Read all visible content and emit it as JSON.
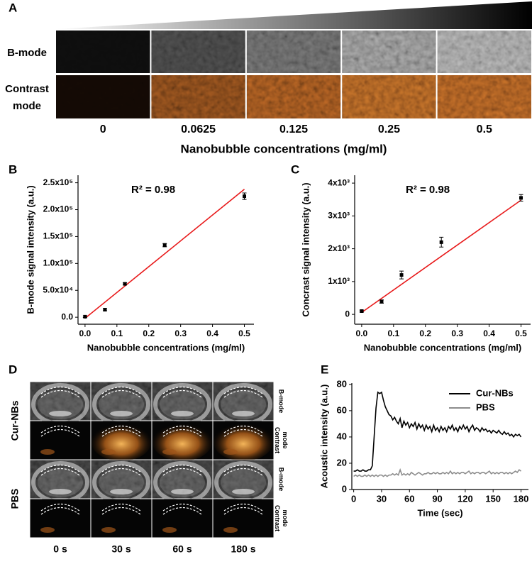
{
  "panel_a": {
    "letter": "A",
    "row_labels": [
      [
        "B-mode"
      ],
      [
        "Contrast",
        "mode"
      ]
    ],
    "column_labels": [
      "0",
      "0.0625",
      "0.125",
      "0.25",
      "0.5"
    ],
    "axis_title": "Nanobubble concentrations (mg/ml)"
  },
  "chart_data": [
    {
      "type": "scatter",
      "panel_label": "B",
      "xlabel": "Nanobubble concentrations (mg/ml)",
      "ylabel": "B-mode signal intensity (a.u.)",
      "annotation": "R² = 0.98",
      "x": [
        0,
        0.0625,
        0.125,
        0.25,
        0.5
      ],
      "values": [
        1000,
        14000,
        62000,
        134000,
        225000
      ],
      "errors": [
        1500,
        2000,
        2000,
        3000,
        6000
      ],
      "color": "#000000",
      "fit": {
        "x": [
          0,
          0.5
        ],
        "values": [
          -2000,
          238000
        ],
        "color": "#e8191a"
      },
      "xlim": [
        -0.022,
        0.53
      ],
      "ylim": [
        -13000,
        264000
      ],
      "xticks": [
        {
          "value": 0,
          "label": "0.0"
        },
        0.1,
        0.2,
        0.3,
        0.4,
        0.5
      ],
      "yticks": [
        {
          "value": 0,
          "label": "0.0"
        },
        {
          "value": 50000,
          "label": "5.0x10⁴"
        },
        {
          "value": 100000,
          "label": "1.0x10⁵"
        },
        {
          "value": 150000,
          "label": "1.5x10⁵"
        },
        {
          "value": 200000,
          "label": "2.0x10⁵"
        },
        {
          "value": 250000,
          "label": "2.5x10⁵"
        }
      ]
    },
    {
      "type": "scatter",
      "panel_label": "C",
      "xlabel": "Nanobubble concentrations (mg/ml)",
      "ylabel": "Concrast signal intensity (a.u.)",
      "annotation": "R² = 0.98",
      "x": [
        0,
        0.0625,
        0.125,
        0.25,
        0.5
      ],
      "values": [
        100,
        390,
        1200,
        2200,
        3550
      ],
      "errors": [
        30,
        50,
        120,
        150,
        100
      ],
      "color": "#000000",
      "fit": {
        "x": [
          0,
          0.5
        ],
        "values": [
          60,
          3480
        ],
        "color": "#e8191a"
      },
      "xlim": [
        -0.022,
        0.53
      ],
      "ylim": [
        -300,
        4240
      ],
      "xticks": [
        {
          "value": 0,
          "label": "0.0"
        },
        0.1,
        0.2,
        0.3,
        0.4,
        0.5
      ],
      "yticks": [
        0,
        {
          "value": 1000,
          "label": "1x10³"
        },
        {
          "value": 2000,
          "label": "2x10³"
        },
        {
          "value": 3000,
          "label": "3x10³"
        },
        {
          "value": 4000,
          "label": "4x10³"
        }
      ]
    },
    {
      "type": "line",
      "panel_label": "E",
      "xlabel": "Time (sec)",
      "ylabel": "Acoustic intensity (a.u.)",
      "x": [
        0,
        2,
        4,
        6,
        8,
        10,
        12,
        14,
        16,
        18,
        20,
        22,
        24,
        26,
        28,
        30,
        32,
        34,
        36,
        38,
        40,
        42,
        44,
        46,
        48,
        50,
        52,
        54,
        56,
        58,
        60,
        62,
        64,
        66,
        68,
        70,
        72,
        74,
        76,
        78,
        80,
        82,
        84,
        86,
        88,
        90,
        92,
        94,
        96,
        98,
        100,
        102,
        104,
        106,
        108,
        110,
        112,
        114,
        116,
        118,
        120,
        122,
        124,
        126,
        128,
        130,
        132,
        134,
        136,
        138,
        140,
        142,
        144,
        146,
        148,
        150,
        152,
        154,
        156,
        158,
        160,
        162,
        164,
        166,
        168,
        170,
        172,
        174,
        176,
        178,
        180
      ],
      "series": [
        {
          "name": "Cur-NBs",
          "color": "#000000",
          "values": [
            14,
            14,
            15,
            14,
            14,
            15,
            14,
            14,
            15,
            15,
            18,
            40,
            62,
            74,
            73,
            74,
            68,
            63,
            60,
            57,
            56,
            53,
            55,
            52,
            50,
            54,
            47,
            52,
            49,
            51,
            47,
            50,
            48,
            51,
            46,
            50,
            47,
            49,
            45,
            49,
            46,
            48,
            44,
            49,
            45,
            47,
            44,
            48,
            45,
            47,
            44,
            48,
            46,
            49,
            45,
            47,
            44,
            48,
            46,
            49,
            46,
            48,
            44,
            47,
            49,
            45,
            47,
            46,
            44,
            47,
            45,
            46,
            44,
            45,
            43,
            45,
            44,
            43,
            45,
            43,
            42,
            44,
            42,
            43,
            41,
            42,
            40,
            42,
            41,
            42,
            40
          ]
        },
        {
          "name": "PBS",
          "color": "#8c8c8c",
          "values": [
            10,
            11,
            10,
            11,
            10,
            10,
            11,
            10,
            11,
            10,
            11,
            10,
            11,
            10,
            11,
            11,
            10,
            11,
            10,
            11,
            11,
            12,
            11,
            12,
            11,
            15,
            11,
            12,
            11,
            12,
            11,
            13,
            12,
            11,
            12,
            13,
            12,
            11,
            12,
            12,
            13,
            12,
            12,
            13,
            12,
            13,
            12,
            12,
            13,
            12,
            13,
            12,
            14,
            12,
            13,
            12,
            13,
            12,
            13,
            13,
            12,
            13,
            14,
            12,
            13,
            12,
            13,
            13,
            12,
            13,
            13,
            12,
            13,
            14,
            12,
            13,
            12,
            13,
            12,
            13,
            13,
            12,
            13,
            12,
            13,
            12,
            13,
            14,
            13,
            15,
            14
          ]
        }
      ],
      "xlim": [
        -2,
        188
      ],
      "ylim": [
        0,
        81
      ],
      "xticks": [
        0,
        30,
        60,
        90,
        120,
        150,
        180
      ],
      "yticks": [
        0,
        20,
        40,
        60,
        80
      ],
      "legend": "upper right"
    }
  ],
  "panel_d": {
    "letter": "D",
    "groups": [
      "Cur-NBs",
      "PBS"
    ],
    "modes": [
      [
        "B-mode"
      ],
      [
        "Contrast",
        "mode"
      ],
      [
        "B-mode"
      ],
      [
        "Contrast",
        "mode"
      ]
    ],
    "times": [
      "0 s",
      "30 s",
      "60 s",
      "180 s"
    ]
  }
}
